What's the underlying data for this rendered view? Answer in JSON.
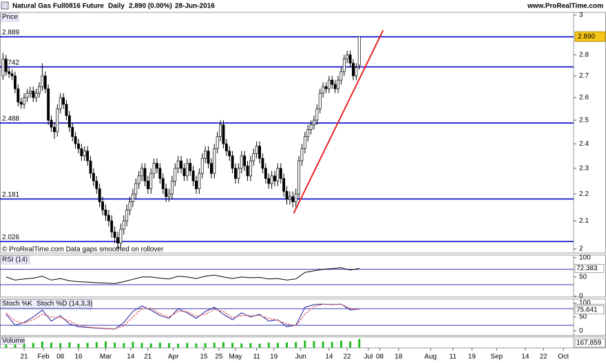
{
  "header": {
    "title": "Natural Gas Full0816 Future",
    "period": "Daily",
    "quote": "2.890 (0.00%)",
    "date": "28-Jun-2016",
    "site": "www.ProRealTime.com"
  },
  "chart_data": [
    {
      "type": "candlestick",
      "label": "Price",
      "note": "© ProRealTime.com  Data gaps smoothed on rollover",
      "log_scale": true,
      "x": [
        -7,
        -6,
        -5,
        -4,
        -3,
        -2,
        -1,
        0,
        1,
        2,
        3,
        4,
        5,
        6,
        7,
        8,
        9,
        10,
        11,
        12,
        13,
        14,
        15,
        16,
        17,
        18,
        19,
        20,
        21,
        22,
        23,
        24,
        25,
        26,
        27,
        28,
        29,
        30,
        31,
        32,
        33,
        34,
        35,
        36,
        37,
        38,
        39,
        40,
        41,
        42,
        43,
        44,
        45,
        46,
        47,
        48,
        49,
        50,
        51,
        52,
        53,
        54,
        55,
        56,
        57,
        58,
        59,
        60,
        61,
        62,
        63,
        64,
        65,
        66,
        67,
        68,
        69,
        70,
        71,
        72,
        73,
        74,
        75,
        76,
        77,
        78,
        79,
        80,
        81,
        82,
        83,
        84,
        85,
        86,
        87,
        88,
        89,
        90,
        91,
        92,
        93,
        94,
        95,
        96,
        97,
        98,
        99,
        100,
        101,
        102,
        103,
        104,
        105,
        106,
        107,
        108,
        109,
        110,
        111
      ],
      "ohlc": [
        [
          2.7,
          2.81,
          2.68,
          2.78
        ],
        [
          2.78,
          2.8,
          2.7,
          2.72
        ],
        [
          2.72,
          2.74,
          2.69,
          2.71
        ],
        [
          2.71,
          2.73,
          2.68,
          2.7
        ],
        [
          2.7,
          2.72,
          2.62,
          2.64
        ],
        [
          2.64,
          2.66,
          2.56,
          2.58
        ],
        [
          2.58,
          2.6,
          2.55,
          2.57
        ],
        [
          2.57,
          2.62,
          2.55,
          2.6
        ],
        [
          2.6,
          2.64,
          2.58,
          2.62
        ],
        [
          2.62,
          2.65,
          2.6,
          2.63
        ],
        [
          2.63,
          2.65,
          2.58,
          2.6
        ],
        [
          2.6,
          2.64,
          2.58,
          2.62
        ],
        [
          2.62,
          2.67,
          2.6,
          2.65
        ],
        [
          2.65,
          2.76,
          2.63,
          2.7
        ],
        [
          2.7,
          2.72,
          2.62,
          2.64
        ],
        [
          2.64,
          2.66,
          2.48,
          2.5
        ],
        [
          2.5,
          2.52,
          2.45,
          2.47
        ],
        [
          2.47,
          2.49,
          2.42,
          2.45
        ],
        [
          2.45,
          2.57,
          2.43,
          2.55
        ],
        [
          2.55,
          2.62,
          2.53,
          2.6
        ],
        [
          2.6,
          2.62,
          2.55,
          2.57
        ],
        [
          2.57,
          2.59,
          2.5,
          2.52
        ],
        [
          2.52,
          2.54,
          2.45,
          2.47
        ],
        [
          2.47,
          2.49,
          2.41,
          2.43
        ],
        [
          2.43,
          2.45,
          2.38,
          2.4
        ],
        [
          2.4,
          2.42,
          2.36,
          2.38
        ],
        [
          2.38,
          2.4,
          2.33,
          2.35
        ],
        [
          2.35,
          2.39,
          2.33,
          2.37
        ],
        [
          2.37,
          2.39,
          2.31,
          2.33
        ],
        [
          2.33,
          2.35,
          2.26,
          2.28
        ],
        [
          2.28,
          2.3,
          2.23,
          2.25
        ],
        [
          2.25,
          2.27,
          2.2,
          2.22
        ],
        [
          2.22,
          2.24,
          2.15,
          2.17
        ],
        [
          2.17,
          2.19,
          2.12,
          2.14
        ],
        [
          2.14,
          2.16,
          2.1,
          2.12
        ],
        [
          2.12,
          2.14,
          2.08,
          2.1
        ],
        [
          2.1,
          2.12,
          2.04,
          2.06
        ],
        [
          2.06,
          2.08,
          2.02,
          2.04
        ],
        [
          2.04,
          2.06,
          2.0,
          2.02
        ],
        [
          2.02,
          2.09,
          2.0,
          2.07
        ],
        [
          2.07,
          2.12,
          2.05,
          2.1
        ],
        [
          2.1,
          2.16,
          2.08,
          2.14
        ],
        [
          2.14,
          2.19,
          2.12,
          2.17
        ],
        [
          2.17,
          2.22,
          2.15,
          2.2
        ],
        [
          2.2,
          2.26,
          2.18,
          2.24
        ],
        [
          2.24,
          2.29,
          2.22,
          2.27
        ],
        [
          2.27,
          2.32,
          2.25,
          2.3
        ],
        [
          2.3,
          2.32,
          2.23,
          2.25
        ],
        [
          2.25,
          2.27,
          2.2,
          2.22
        ],
        [
          2.22,
          2.3,
          2.2,
          2.28
        ],
        [
          2.28,
          2.34,
          2.26,
          2.32
        ],
        [
          2.32,
          2.34,
          2.28,
          2.3
        ],
        [
          2.3,
          2.32,
          2.24,
          2.26
        ],
        [
          2.26,
          2.28,
          2.2,
          2.22
        ],
        [
          2.22,
          2.24,
          2.17,
          2.19
        ],
        [
          2.19,
          2.22,
          2.17,
          2.2
        ],
        [
          2.2,
          2.27,
          2.18,
          2.25
        ],
        [
          2.25,
          2.32,
          2.23,
          2.3
        ],
        [
          2.3,
          2.35,
          2.28,
          2.33
        ],
        [
          2.33,
          2.35,
          2.28,
          2.3
        ],
        [
          2.3,
          2.32,
          2.25,
          2.27
        ],
        [
          2.27,
          2.34,
          2.25,
          2.32
        ],
        [
          2.32,
          2.34,
          2.27,
          2.29
        ],
        [
          2.29,
          2.31,
          2.23,
          2.25
        ],
        [
          2.25,
          2.27,
          2.2,
          2.22
        ],
        [
          2.22,
          2.3,
          2.2,
          2.28
        ],
        [
          2.28,
          2.36,
          2.26,
          2.34
        ],
        [
          2.34,
          2.39,
          2.32,
          2.37
        ],
        [
          2.37,
          2.39,
          2.3,
          2.32
        ],
        [
          2.32,
          2.34,
          2.26,
          2.28
        ],
        [
          2.28,
          2.4,
          2.26,
          2.38
        ],
        [
          2.38,
          2.45,
          2.36,
          2.43
        ],
        [
          2.43,
          2.5,
          2.41,
          2.48
        ],
        [
          2.48,
          2.5,
          2.38,
          2.4
        ],
        [
          2.4,
          2.42,
          2.35,
          2.37
        ],
        [
          2.37,
          2.39,
          2.33,
          2.35
        ],
        [
          2.35,
          2.37,
          2.28,
          2.3
        ],
        [
          2.3,
          2.32,
          2.24,
          2.26
        ],
        [
          2.26,
          2.32,
          2.24,
          2.3
        ],
        [
          2.3,
          2.37,
          2.28,
          2.35
        ],
        [
          2.35,
          2.37,
          2.29,
          2.31
        ],
        [
          2.31,
          2.33,
          2.25,
          2.27
        ],
        [
          2.27,
          2.35,
          2.25,
          2.33
        ],
        [
          2.33,
          2.38,
          2.31,
          2.36
        ],
        [
          2.36,
          2.41,
          2.34,
          2.39
        ],
        [
          2.39,
          2.41,
          2.32,
          2.34
        ],
        [
          2.34,
          2.36,
          2.28,
          2.3
        ],
        [
          2.3,
          2.32,
          2.24,
          2.26
        ],
        [
          2.26,
          2.28,
          2.22,
          2.24
        ],
        [
          2.24,
          2.29,
          2.22,
          2.27
        ],
        [
          2.27,
          2.29,
          2.23,
          2.25
        ],
        [
          2.25,
          2.32,
          2.23,
          2.3
        ],
        [
          2.3,
          2.32,
          2.24,
          2.26
        ],
        [
          2.26,
          2.28,
          2.19,
          2.21
        ],
        [
          2.21,
          2.23,
          2.16,
          2.18
        ],
        [
          2.18,
          2.21,
          2.16,
          2.19
        ],
        [
          2.19,
          2.21,
          2.15,
          2.17
        ],
        [
          2.17,
          2.22,
          2.15,
          2.2
        ],
        [
          2.2,
          2.35,
          2.18,
          2.33
        ],
        [
          2.33,
          2.4,
          2.31,
          2.38
        ],
        [
          2.38,
          2.45,
          2.36,
          2.43
        ],
        [
          2.43,
          2.48,
          2.41,
          2.46
        ],
        [
          2.46,
          2.5,
          2.44,
          2.48
        ],
        [
          2.48,
          2.52,
          2.46,
          2.5
        ],
        [
          2.5,
          2.57,
          2.48,
          2.55
        ],
        [
          2.55,
          2.64,
          2.53,
          2.62
        ],
        [
          2.62,
          2.67,
          2.6,
          2.65
        ],
        [
          2.65,
          2.67,
          2.62,
          2.64
        ],
        [
          2.64,
          2.7,
          2.62,
          2.68
        ],
        [
          2.68,
          2.7,
          2.64,
          2.66
        ],
        [
          2.66,
          2.68,
          2.62,
          2.64
        ],
        [
          2.64,
          2.7,
          2.62,
          2.68
        ],
        [
          2.68,
          2.74,
          2.66,
          2.72
        ],
        [
          2.72,
          2.8,
          2.7,
          2.78
        ],
        [
          2.78,
          2.82,
          2.76,
          2.8
        ],
        [
          2.8,
          2.82,
          2.74,
          2.76
        ],
        [
          2.76,
          2.78,
          2.68,
          2.7
        ],
        [
          2.7,
          2.76,
          2.68,
          2.74
        ],
        [
          2.75,
          2.89,
          2.73,
          2.89
        ]
      ],
      "xlim": [
        -8,
        182
      ],
      "xticks": [
        {
          "value": 0,
          "label": "21"
        },
        {
          "value": 6.4,
          "label": "Feb"
        },
        {
          "value": 12,
          "label": "08"
        },
        {
          "value": 18,
          "label": "16"
        },
        {
          "value": 27,
          "label": "Mar"
        },
        {
          "value": 35.3,
          "label": "14"
        },
        {
          "value": 41,
          "label": "21"
        },
        {
          "value": 49.4,
          "label": "Apr"
        },
        {
          "value": 59.5,
          "label": "15"
        },
        {
          "value": 64.5,
          "label": "25"
        },
        {
          "value": 70,
          "label": "May"
        },
        {
          "value": 77,
          "label": "11"
        },
        {
          "value": 82.7,
          "label": "19"
        },
        {
          "value": 91.6,
          "label": "Jun"
        },
        {
          "value": 101,
          "label": "14"
        },
        {
          "value": 107,
          "label": "22"
        },
        {
          "value": 114,
          "label": "Jul"
        },
        {
          "value": 117.8,
          "label": "08"
        },
        {
          "value": 124,
          "label": "18"
        },
        {
          "value": 134.6,
          "label": "Aug"
        },
        {
          "value": 142,
          "label": "11"
        },
        {
          "value": 148.3,
          "label": "19"
        },
        {
          "value": 156.5,
          "label": "Sep"
        },
        {
          "value": 166,
          "label": "14"
        },
        {
          "value": 172,
          "label": "22"
        },
        {
          "value": 178.6,
          "label": "Oct"
        }
      ],
      "ylim": [
        1.986,
        3.014
      ],
      "yticks": [
        3,
        2.8,
        2.7,
        2.6,
        2.5,
        2.4,
        2.3,
        2.2,
        2.1,
        2
      ],
      "levels": [
        2.889,
        2.742,
        2.488,
        2.181,
        2.026
      ],
      "level_color": "#0000cc",
      "trendline": {
        "x": [
          89.3,
          118.9
        ],
        "y": [
          2.128,
          2.922
        ],
        "color": "#e82020"
      },
      "last_price": {
        "value": 2.89,
        "label": "2.890"
      }
    },
    {
      "type": "line",
      "label": "RSI (14)",
      "x": [
        -6,
        -3,
        0,
        3,
        6,
        9,
        12,
        15,
        18,
        21,
        24,
        27,
        30,
        33,
        36,
        39,
        42,
        45,
        48,
        51,
        54,
        57,
        60,
        63,
        66,
        69,
        72,
        75,
        78,
        81,
        84,
        87,
        90,
        93,
        96,
        99,
        102,
        105,
        108,
        111
      ],
      "series": [
        {
          "color": "#000000",
          "values": [
            50,
            42,
            45,
            47,
            52,
            42,
            46,
            40,
            38,
            37,
            35,
            34,
            33,
            38,
            44,
            50,
            50,
            47,
            45,
            52,
            50,
            46,
            52,
            55,
            50,
            46,
            50,
            48,
            49,
            45,
            46,
            42,
            45,
            62,
            66,
            70,
            72,
            74,
            68,
            72.383
          ]
        }
      ],
      "ylim": [
        -2,
        107
      ],
      "yticks": [
        100,
        50,
        0
      ],
      "levels": [
        70,
        30
      ],
      "level_color": "#3333aa"
    },
    {
      "type": "line",
      "x": [
        -6,
        -3,
        0,
        3,
        6,
        9,
        12,
        15,
        18,
        21,
        24,
        27,
        30,
        33,
        36,
        39,
        42,
        45,
        48,
        51,
        54,
        57,
        60,
        63,
        66,
        69,
        72,
        75,
        78,
        81,
        84,
        87,
        90,
        93,
        96,
        99,
        102,
        105,
        108,
        111
      ],
      "series": [
        {
          "name": "Stoch %K",
          "color": "#1a1aa0",
          "values": [
            60,
            20,
            30,
            50,
            75,
            35,
            55,
            25,
            15,
            12,
            10,
            8,
            6,
            30,
            70,
            90,
            75,
            55,
            45,
            80,
            65,
            45,
            70,
            85,
            60,
            40,
            65,
            50,
            60,
            35,
            40,
            15,
            20,
            85,
            95,
            97,
            95,
            97,
            75,
            80.819
          ]
        },
        {
          "name": "Stoch %D (14,3,3)",
          "color": "#e06060",
          "values": [
            65,
            35,
            28,
            40,
            60,
            50,
            48,
            35,
            20,
            14,
            11,
            9,
            7,
            18,
            50,
            80,
            82,
            62,
            50,
            70,
            70,
            52,
            60,
            78,
            70,
            48,
            55,
            55,
            55,
            45,
            38,
            25,
            18,
            60,
            88,
            96,
            96,
            96,
            82,
            75.641
          ]
        }
      ],
      "ylim": [
        -17,
        115
      ],
      "yticks": [
        100,
        50,
        0
      ],
      "levels": [
        80,
        20
      ],
      "level_color": "#3333aa"
    },
    {
      "type": "bar",
      "label": "Volume",
      "color": "#22bb22",
      "x": [
        -6,
        -3,
        0,
        3,
        6,
        9,
        12,
        15,
        18,
        21,
        24,
        27,
        30,
        33,
        36,
        39,
        42,
        45,
        48,
        51,
        54,
        57,
        60,
        63,
        66,
        69,
        72,
        75,
        78,
        81,
        84,
        87,
        90,
        93,
        96,
        99,
        102,
        105,
        108,
        111
      ],
      "values": [
        90000,
        110000,
        85000,
        95000,
        120000,
        100000,
        90000,
        105000,
        80000,
        95000,
        110000,
        125000,
        100000,
        90000,
        115000,
        95000,
        85000,
        100000,
        90000,
        80000,
        95000,
        85000,
        90000,
        100000,
        110000,
        95000,
        85000,
        90000,
        80000,
        100000,
        95000,
        105000,
        110000,
        140000,
        130000,
        120000,
        115000,
        135000,
        125000,
        167859
      ],
      "last_label": "167,859",
      "ylim": [
        0,
        210000
      ]
    }
  ]
}
